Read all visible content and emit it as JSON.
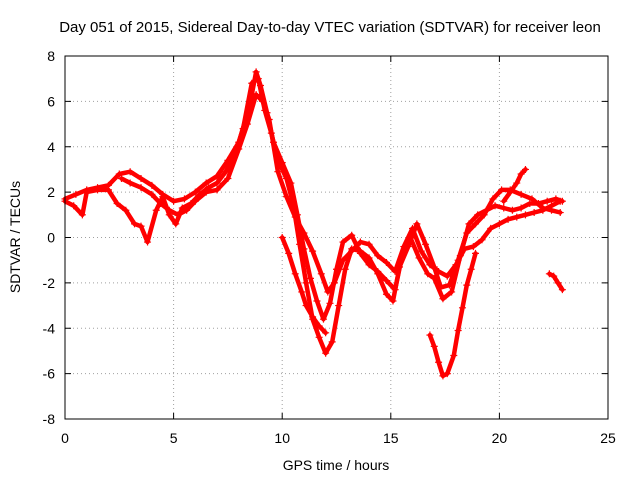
{
  "chart_data": {
    "type": "scatter",
    "title": "Day 051 of 2015, Sidereal Day-to-day VTEC variation (SDTVAR) for receiver leon",
    "xlabel": "GPS time / hours",
    "ylabel": "SDTVAR / TECUs",
    "xlim": [
      0,
      25
    ],
    "ylim": [
      -8,
      8
    ],
    "x_ticks": [
      0,
      5,
      10,
      15,
      20,
      25
    ],
    "y_ticks": [
      -8,
      -6,
      -4,
      -2,
      0,
      2,
      4,
      6,
      8
    ],
    "x_tick_labels": [
      "0",
      "5",
      "10",
      "15",
      "20",
      "25"
    ],
    "y_tick_labels": [
      "-8",
      "-6",
      "-4",
      "-2",
      "0",
      "2",
      "4",
      "6",
      "8"
    ],
    "grid": true,
    "marker": "+",
    "color": "#ff0000",
    "series": [
      {
        "points": [
          [
            0.0,
            1.7
          ],
          [
            0.5,
            1.9
          ],
          [
            1.0,
            2.1
          ],
          [
            1.5,
            2.2
          ],
          [
            2.0,
            2.3
          ],
          [
            2.5,
            2.8
          ],
          [
            3.0,
            2.9
          ],
          [
            3.5,
            2.6
          ],
          [
            4.0,
            2.3
          ],
          [
            4.5,
            1.9
          ],
          [
            5.0,
            1.6
          ],
          [
            5.5,
            1.7
          ],
          [
            6.0,
            2.0
          ],
          [
            6.5,
            2.4
          ],
          [
            7.0,
            2.7
          ],
          [
            7.5,
            3.4
          ],
          [
            8.0,
            4.2
          ],
          [
            8.5,
            5.8
          ],
          [
            8.8,
            7.3
          ],
          [
            9.0,
            6.7
          ],
          [
            9.3,
            5.5
          ],
          [
            9.6,
            4.2
          ],
          [
            10.0,
            3.3
          ],
          [
            10.4,
            2.4
          ],
          [
            10.7,
            1.0
          ],
          [
            11.0,
            -0.5
          ],
          [
            11.3,
            -1.8
          ],
          [
            11.6,
            -2.8
          ],
          [
            11.9,
            -3.6
          ],
          [
            12.2,
            -2.9
          ],
          [
            12.5,
            -1.4
          ],
          [
            12.8,
            -0.2
          ],
          [
            13.2,
            0.1
          ],
          [
            13.6,
            -0.7
          ],
          [
            14.0,
            -1.2
          ],
          [
            14.4,
            -1.5
          ],
          [
            14.8,
            -1.9
          ],
          [
            15.2,
            -2.3
          ],
          [
            15.5,
            -0.9
          ],
          [
            15.9,
            0.0
          ],
          [
            16.3,
            -0.9
          ],
          [
            16.7,
            -1.6
          ],
          [
            17.0,
            -1.8
          ],
          [
            17.4,
            -2.7
          ],
          [
            17.8,
            -2.4
          ],
          [
            18.2,
            -0.8
          ],
          [
            18.6,
            0.6
          ],
          [
            19.0,
            1.0
          ],
          [
            19.4,
            1.2
          ],
          [
            19.8,
            1.4
          ],
          [
            20.2,
            1.3
          ],
          [
            20.6,
            1.2
          ],
          [
            21.0,
            1.3
          ],
          [
            21.4,
            1.5
          ],
          [
            21.8,
            1.5
          ],
          [
            22.2,
            1.6
          ],
          [
            22.6,
            1.7
          ],
          [
            22.9,
            1.6
          ]
        ]
      },
      {
        "points": [
          [
            0.0,
            1.6
          ],
          [
            0.4,
            1.4
          ],
          [
            0.8,
            1.0
          ],
          [
            1.0,
            2.0
          ],
          [
            1.5,
            2.1
          ],
          [
            2.0,
            2.1
          ],
          [
            2.4,
            1.5
          ],
          [
            2.8,
            1.2
          ],
          [
            3.2,
            0.6
          ],
          [
            3.5,
            0.5
          ],
          [
            3.8,
            -0.2
          ],
          [
            4.2,
            1.2
          ],
          [
            4.5,
            1.8
          ],
          [
            4.8,
            1.0
          ],
          [
            5.1,
            0.6
          ],
          [
            5.4,
            1.3
          ],
          [
            5.8,
            1.5
          ],
          [
            6.2,
            1.9
          ],
          [
            6.6,
            2.2
          ],
          [
            7.0,
            2.4
          ],
          [
            7.4,
            2.9
          ],
          [
            7.8,
            3.6
          ],
          [
            8.2,
            4.8
          ],
          [
            8.6,
            6.8
          ],
          [
            8.9,
            7.0
          ],
          [
            9.2,
            5.6
          ],
          [
            9.5,
            4.6
          ],
          [
            9.8,
            3.4
          ],
          [
            10.2,
            2.6
          ],
          [
            10.5,
            1.5
          ],
          [
            10.8,
            -0.3
          ],
          [
            11.1,
            -2.0
          ],
          [
            11.4,
            -3.6
          ],
          [
            11.7,
            -4.4
          ],
          [
            12.0,
            -5.1
          ],
          [
            12.3,
            -4.6
          ],
          [
            12.6,
            -3.0
          ],
          [
            12.9,
            -1.4
          ],
          [
            13.2,
            -0.5
          ],
          [
            13.6,
            -0.6
          ],
          [
            14.0,
            -0.9
          ],
          [
            14.4,
            -1.6
          ],
          [
            14.8,
            -2.5
          ],
          [
            15.1,
            -2.8
          ],
          [
            15.4,
            -1.3
          ],
          [
            15.8,
            -0.4
          ],
          [
            16.2,
            0.6
          ],
          [
            16.6,
            -0.3
          ],
          [
            17.0,
            -1.3
          ],
          [
            17.3,
            -2.2
          ],
          [
            17.7,
            -2.1
          ],
          [
            18.1,
            -1.0
          ],
          [
            18.5,
            0.2
          ],
          [
            18.9,
            0.6
          ],
          [
            19.3,
            1.0
          ],
          [
            19.7,
            1.7
          ],
          [
            20.1,
            2.1
          ],
          [
            20.5,
            2.1
          ],
          [
            21.0,
            1.9
          ],
          [
            21.5,
            1.7
          ],
          [
            22.0,
            1.3
          ],
          [
            22.4,
            1.2
          ],
          [
            22.8,
            1.1
          ]
        ]
      },
      {
        "points": [
          [
            2.6,
            2.6
          ],
          [
            3.0,
            2.4
          ],
          [
            3.5,
            2.2
          ],
          [
            4.0,
            1.9
          ],
          [
            4.4,
            1.5
          ],
          [
            4.8,
            1.2
          ],
          [
            5.2,
            1.0
          ],
          [
            5.6,
            1.2
          ],
          [
            6.0,
            1.6
          ],
          [
            6.5,
            2.0
          ],
          [
            7.0,
            2.1
          ],
          [
            7.5,
            2.6
          ],
          [
            8.0,
            3.9
          ],
          [
            8.4,
            5.0
          ],
          [
            8.8,
            6.3
          ],
          [
            9.1,
            6.0
          ],
          [
            9.4,
            5.2
          ],
          [
            9.8,
            2.9
          ],
          [
            10.2,
            1.8
          ],
          [
            10.6,
            0.9
          ],
          [
            11.0,
            0.2
          ],
          [
            11.4,
            -0.6
          ],
          [
            11.8,
            -1.6
          ],
          [
            12.1,
            -2.4
          ],
          [
            12.4,
            -2.0
          ],
          [
            12.8,
            -1.0
          ],
          [
            13.2,
            -0.6
          ],
          [
            13.6,
            -0.2
          ],
          [
            14.0,
            -0.3
          ],
          [
            14.4,
            -0.8
          ],
          [
            14.8,
            -1.1
          ],
          [
            15.2,
            -1.5
          ],
          [
            15.6,
            -0.4
          ],
          [
            16.0,
            0.4
          ],
          [
            16.4,
            -0.6
          ],
          [
            16.8,
            -1.2
          ],
          [
            17.2,
            -1.5
          ],
          [
            17.6,
            -1.7
          ],
          [
            18.0,
            -1.2
          ],
          [
            18.4,
            -0.5
          ],
          [
            18.8,
            -0.4
          ],
          [
            19.2,
            -0.1
          ],
          [
            19.6,
            0.4
          ],
          [
            20.0,
            0.6
          ],
          [
            20.4,
            0.8
          ],
          [
            20.8,
            0.9
          ],
          [
            21.2,
            1.0
          ],
          [
            21.6,
            1.1
          ],
          [
            22.0,
            1.2
          ],
          [
            22.4,
            1.4
          ],
          [
            22.8,
            1.6
          ]
        ]
      },
      {
        "points": [
          [
            10.0,
            0.0
          ],
          [
            10.3,
            -0.7
          ],
          [
            10.6,
            -1.6
          ],
          [
            10.9,
            -2.4
          ],
          [
            11.1,
            -3.0
          ],
          [
            11.4,
            -3.5
          ],
          [
            11.7,
            -3.9
          ],
          [
            12.0,
            -4.2
          ]
        ]
      },
      {
        "points": [
          [
            16.8,
            -4.3
          ],
          [
            17.0,
            -4.8
          ],
          [
            17.2,
            -5.5
          ],
          [
            17.4,
            -6.1
          ],
          [
            17.6,
            -6.0
          ],
          [
            17.9,
            -5.2
          ],
          [
            18.1,
            -4.1
          ],
          [
            18.3,
            -3.1
          ],
          [
            18.5,
            -2.1
          ],
          [
            18.7,
            -1.4
          ],
          [
            18.9,
            -0.7
          ]
        ]
      },
      {
        "points": [
          [
            20.2,
            1.6
          ],
          [
            20.5,
            2.0
          ],
          [
            20.8,
            2.4
          ],
          [
            21.0,
            2.8
          ],
          [
            21.2,
            3.0
          ]
        ]
      },
      {
        "points": [
          [
            22.3,
            -1.6
          ],
          [
            22.5,
            -1.7
          ],
          [
            22.7,
            -2.0
          ],
          [
            22.9,
            -2.3
          ]
        ]
      }
    ]
  }
}
